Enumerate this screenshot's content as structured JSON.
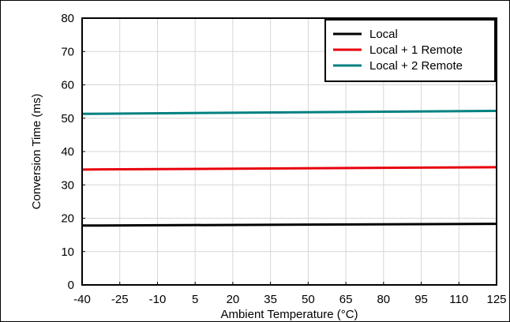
{
  "chart_data": {
    "type": "line",
    "xlabel": "Ambient Temperature (°C)",
    "ylabel": "Conversion Time (ms)",
    "xlim": [
      -40,
      125
    ],
    "ylim": [
      0,
      80
    ],
    "x_ticks": [
      -40,
      -25,
      -10,
      5,
      20,
      35,
      50,
      65,
      80,
      95,
      110,
      125
    ],
    "y_ticks": [
      0,
      10,
      20,
      30,
      40,
      50,
      60,
      70,
      80
    ],
    "grid": true,
    "legend_position": "top-right",
    "series": [
      {
        "name": "Local",
        "color": "#000000",
        "x": [
          -40,
          125
        ],
        "y": [
          17.8,
          18.3
        ]
      },
      {
        "name": "Local + 1 Remote",
        "color": "#e8000b",
        "x": [
          -40,
          125
        ],
        "y": [
          34.6,
          35.3
        ]
      },
      {
        "name": "Local + 2 Remote",
        "color": "#008080",
        "x": [
          -40,
          125
        ],
        "y": [
          51.3,
          52.2
        ]
      }
    ]
  }
}
